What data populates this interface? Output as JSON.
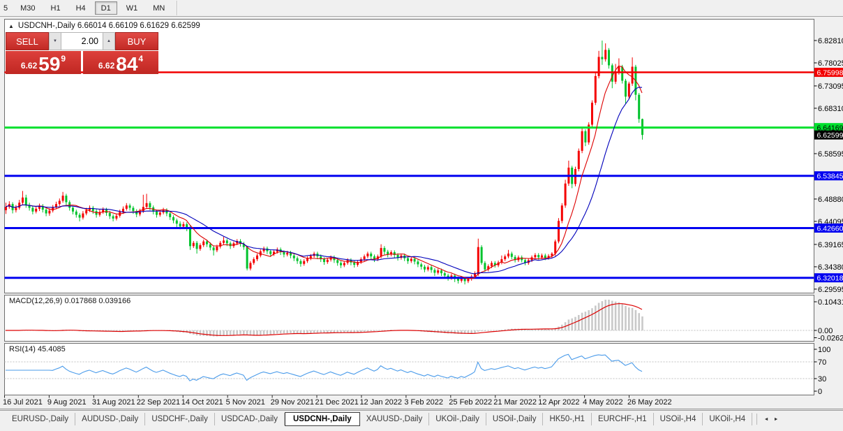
{
  "toolbar": {
    "timeframes": [
      "5",
      "M30",
      "H1",
      "H4",
      "D1",
      "W1",
      "MN"
    ],
    "active": "D1"
  },
  "chart": {
    "title": "USDCNH-,Daily 6.66014 6.66109 6.61629 6.62599"
  },
  "icons": {
    "collapse": "▲",
    "stepper_down": "▼",
    "stepper_up": "▲",
    "tab_scroll_left": "◄",
    "tab_scroll_right": "►"
  },
  "trade_panel": {
    "sell_label": "SELL",
    "buy_label": "BUY",
    "volume": "2.00",
    "sell_price_small": "6.62",
    "sell_price_big": "59",
    "sell_price_sup": "9",
    "buy_price_small": "6.62",
    "buy_price_big": "84",
    "buy_price_sup": "4"
  },
  "macd": {
    "label": "MACD(12,26,9) 0.017868 0.039166",
    "axis": [
      "0.104313",
      "0.00",
      "-0.026249"
    ]
  },
  "rsi": {
    "label": "RSI(14) 45.4085",
    "axis": [
      "100",
      "70",
      "30",
      "0"
    ]
  },
  "tabs": {
    "items": [
      "EURUSD-,Daily",
      "AUDUSD-,Daily",
      "USDCHF-,Daily",
      "USDCAD-,Daily",
      "USDCNH-,Daily",
      "XAUUSD-,Daily",
      "UKOil-,Daily",
      "USOil-,Daily",
      "HK50-,H1",
      "EURCHF-,H1",
      "USOil-,H4",
      "UKOil-,H4"
    ],
    "active": "USDCNH-,Daily"
  },
  "chart_data": {
    "type": "candlestick",
    "symbol": "USDCNH-",
    "period": "Daily",
    "price_ticks": [
      "6.82810",
      "6.78025",
      "6.73095",
      "6.68310",
      "6.58595",
      "6.48880",
      "6.44095",
      "6.39165",
      "6.34380",
      "6.29595"
    ],
    "current_price": {
      "value": "6.62599",
      "bg": "#000000",
      "text": "#ffffff"
    },
    "hlines": [
      {
        "price": "6.75998",
        "color": "#f20000",
        "text": "#ffffff",
        "width": 2.5
      },
      {
        "price": "6.64169",
        "color": "#00e02e",
        "text": "#000000",
        "width": 3
      },
      {
        "price": "6.53845",
        "color": "#0202f0",
        "text": "#ffffff",
        "width": 3
      },
      {
        "price": "6.42660",
        "color": "#0202f0",
        "text": "#ffffff",
        "width": 3
      },
      {
        "price": "6.32018",
        "color": "#0202f0",
        "text": "#ffffff",
        "width": 3
      }
    ],
    "date_ticks": [
      "16 Jul 2021",
      "9 Aug 2021",
      "31 Aug 2021",
      "22 Sep 2021",
      "14 Oct 2021",
      "5 Nov 2021",
      "29 Nov 2021",
      "21 Dec 2021",
      "12 Jan 2022",
      "3 Feb 2022",
      "25 Feb 2022",
      "21 Mar 2022",
      "12 Apr 2022",
      "4 May 2022",
      "26 May 2022"
    ],
    "colors": {
      "up": "#f40000",
      "down": "#00c22c",
      "ma_fast": "#dd0000",
      "ma_slow": "#0000bb",
      "macd_hist": "#c9c9c9",
      "macd_signal": "#dd0000",
      "rsi": "#4a9bea",
      "dash": "#c0c0c0"
    },
    "candles": [
      [
        6.465,
        6.481,
        6.457,
        6.472
      ],
      [
        6.472,
        6.484,
        6.468,
        6.478
      ],
      [
        6.478,
        6.482,
        6.458,
        6.465
      ],
      [
        6.465,
        6.476,
        6.46,
        6.47
      ],
      [
        6.47,
        6.487,
        6.466,
        6.481
      ],
      [
        6.481,
        6.506,
        6.477,
        6.492
      ],
      [
        6.492,
        6.498,
        6.47,
        6.475
      ],
      [
        6.475,
        6.481,
        6.464,
        6.47
      ],
      [
        6.47,
        6.474,
        6.456,
        6.462
      ],
      [
        6.462,
        6.473,
        6.458,
        6.468
      ],
      [
        6.468,
        6.479,
        6.463,
        6.474
      ],
      [
        6.474,
        6.478,
        6.46,
        6.466
      ],
      [
        6.466,
        6.47,
        6.452,
        6.458
      ],
      [
        6.458,
        6.469,
        6.453,
        6.464
      ],
      [
        6.464,
        6.476,
        6.46,
        6.471
      ],
      [
        6.471,
        6.483,
        6.467,
        6.478
      ],
      [
        6.478,
        6.49,
        6.474,
        6.485
      ],
      [
        6.485,
        6.504,
        6.481,
        6.496
      ],
      [
        6.496,
        6.5,
        6.476,
        6.482
      ],
      [
        6.482,
        6.486,
        6.464,
        6.47
      ],
      [
        6.47,
        6.474,
        6.456,
        6.462
      ],
      [
        6.462,
        6.466,
        6.449,
        6.455
      ],
      [
        6.455,
        6.459,
        6.441,
        6.449
      ],
      [
        6.449,
        6.463,
        6.445,
        6.458
      ],
      [
        6.458,
        6.47,
        6.454,
        6.465
      ],
      [
        6.465,
        6.475,
        6.461,
        6.47
      ],
      [
        6.47,
        6.474,
        6.457,
        6.463
      ],
      [
        6.463,
        6.467,
        6.449,
        6.455
      ],
      [
        6.455,
        6.466,
        6.451,
        6.461
      ],
      [
        6.461,
        6.471,
        6.457,
        6.466
      ],
      [
        6.466,
        6.47,
        6.453,
        6.459
      ],
      [
        6.459,
        6.463,
        6.446,
        6.452
      ],
      [
        6.452,
        6.456,
        6.441,
        6.447
      ],
      [
        6.447,
        6.458,
        6.443,
        6.453
      ],
      [
        6.453,
        6.466,
        6.449,
        6.461
      ],
      [
        6.461,
        6.473,
        6.457,
        6.468
      ],
      [
        6.468,
        6.48,
        6.464,
        6.475
      ],
      [
        6.475,
        6.479,
        6.464,
        6.47
      ],
      [
        6.47,
        6.474,
        6.457,
        6.463
      ],
      [
        6.463,
        6.467,
        6.45,
        6.456
      ],
      [
        6.456,
        6.468,
        6.452,
        6.463
      ],
      [
        6.463,
        6.498,
        6.459,
        6.472
      ],
      [
        6.472,
        6.5,
        6.468,
        6.48
      ],
      [
        6.48,
        6.484,
        6.465,
        6.471
      ],
      [
        6.471,
        6.475,
        6.456,
        6.462
      ],
      [
        6.462,
        6.466,
        6.449,
        6.455
      ],
      [
        6.455,
        6.465,
        6.451,
        6.46
      ],
      [
        6.46,
        6.47,
        6.456,
        6.465
      ],
      [
        6.465,
        6.469,
        6.452,
        6.458
      ],
      [
        6.458,
        6.462,
        6.444,
        6.45
      ],
      [
        6.45,
        6.454,
        6.437,
        6.443
      ],
      [
        6.443,
        6.447,
        6.428,
        6.436
      ],
      [
        6.436,
        6.441,
        6.424,
        6.43
      ],
      [
        6.43,
        6.44,
        6.426,
        6.435
      ],
      [
        6.435,
        6.439,
        6.42,
        6.428
      ],
      [
        6.428,
        6.432,
        6.38,
        6.388
      ],
      [
        6.388,
        6.399,
        6.384,
        6.395
      ],
      [
        6.395,
        6.399,
        6.372,
        6.382
      ],
      [
        6.382,
        6.394,
        6.378,
        6.39
      ],
      [
        6.39,
        6.402,
        6.386,
        6.398
      ],
      [
        6.398,
        6.402,
        6.386,
        6.392
      ],
      [
        6.392,
        6.396,
        6.379,
        6.385
      ],
      [
        6.385,
        6.389,
        6.368,
        6.379
      ],
      [
        6.379,
        6.391,
        6.375,
        6.387
      ],
      [
        6.387,
        6.399,
        6.383,
        6.395
      ],
      [
        6.395,
        6.408,
        6.391,
        6.4
      ],
      [
        6.4,
        6.404,
        6.388,
        6.394
      ],
      [
        6.394,
        6.398,
        6.382,
        6.388
      ],
      [
        6.388,
        6.398,
        6.384,
        6.394
      ],
      [
        6.394,
        6.403,
        6.39,
        6.399
      ],
      [
        6.399,
        6.403,
        6.387,
        6.393
      ],
      [
        6.393,
        6.397,
        6.38,
        6.386
      ],
      [
        6.386,
        6.388,
        6.336,
        6.34
      ],
      [
        6.34,
        6.356,
        6.336,
        6.352
      ],
      [
        6.352,
        6.364,
        6.348,
        6.36
      ],
      [
        6.36,
        6.372,
        6.356,
        6.368
      ],
      [
        6.368,
        6.381,
        6.364,
        6.377
      ],
      [
        6.377,
        6.387,
        6.373,
        6.383
      ],
      [
        6.383,
        6.387,
        6.371,
        6.377
      ],
      [
        6.377,
        6.381,
        6.365,
        6.371
      ],
      [
        6.371,
        6.38,
        6.367,
        6.376
      ],
      [
        6.376,
        6.385,
        6.372,
        6.381
      ],
      [
        6.381,
        6.385,
        6.369,
        6.375
      ],
      [
        6.375,
        6.379,
        6.364,
        6.37
      ],
      [
        6.37,
        6.378,
        6.366,
        6.374
      ],
      [
        6.374,
        6.378,
        6.362,
        6.368
      ],
      [
        6.368,
        6.372,
        6.356,
        6.362
      ],
      [
        6.362,
        6.366,
        6.35,
        6.356
      ],
      [
        6.356,
        6.36,
        6.344,
        6.35
      ],
      [
        6.35,
        6.36,
        6.346,
        6.356
      ],
      [
        6.356,
        6.366,
        6.352,
        6.362
      ],
      [
        6.362,
        6.371,
        6.358,
        6.367
      ],
      [
        6.367,
        6.376,
        6.363,
        6.372
      ],
      [
        6.372,
        6.376,
        6.36,
        6.366
      ],
      [
        6.366,
        6.37,
        6.354,
        6.36
      ],
      [
        6.36,
        6.364,
        6.348,
        6.354
      ],
      [
        6.354,
        6.363,
        6.35,
        6.359
      ],
      [
        6.359,
        6.368,
        6.355,
        6.364
      ],
      [
        6.364,
        6.368,
        6.352,
        6.358
      ],
      [
        6.358,
        6.362,
        6.346,
        6.352
      ],
      [
        6.352,
        6.356,
        6.341,
        6.347
      ],
      [
        6.347,
        6.356,
        6.343,
        6.352
      ],
      [
        6.352,
        6.362,
        6.348,
        6.358
      ],
      [
        6.358,
        6.362,
        6.347,
        6.353
      ],
      [
        6.353,
        6.357,
        6.342,
        6.348
      ],
      [
        6.348,
        6.358,
        6.344,
        6.354
      ],
      [
        6.354,
        6.364,
        6.35,
        6.36
      ],
      [
        6.36,
        6.37,
        6.356,
        6.366
      ],
      [
        6.366,
        6.376,
        6.362,
        6.372
      ],
      [
        6.372,
        6.376,
        6.36,
        6.366
      ],
      [
        6.366,
        6.37,
        6.354,
        6.36
      ],
      [
        6.36,
        6.37,
        6.356,
        6.366
      ],
      [
        6.366,
        6.392,
        6.362,
        6.384
      ],
      [
        6.384,
        6.388,
        6.37,
        6.376
      ],
      [
        6.376,
        6.38,
        6.364,
        6.37
      ],
      [
        6.37,
        6.379,
        6.366,
        6.375
      ],
      [
        6.375,
        6.379,
        6.363,
        6.369
      ],
      [
        6.369,
        6.373,
        6.357,
        6.363
      ],
      [
        6.363,
        6.372,
        6.359,
        6.368
      ],
      [
        6.368,
        6.372,
        6.356,
        6.362
      ],
      [
        6.362,
        6.366,
        6.35,
        6.356
      ],
      [
        6.356,
        6.365,
        6.352,
        6.361
      ],
      [
        6.361,
        6.365,
        6.349,
        6.355
      ],
      [
        6.355,
        6.359,
        6.343,
        6.349
      ],
      [
        6.349,
        6.353,
        6.338,
        6.344
      ],
      [
        6.344,
        6.348,
        6.332,
        6.338
      ],
      [
        6.338,
        6.347,
        6.334,
        6.343
      ],
      [
        6.343,
        6.347,
        6.331,
        6.337
      ],
      [
        6.337,
        6.341,
        6.324,
        6.331
      ],
      [
        6.331,
        6.34,
        6.327,
        6.336
      ],
      [
        6.336,
        6.34,
        6.324,
        6.33
      ],
      [
        6.33,
        6.334,
        6.319,
        6.325
      ],
      [
        6.325,
        6.329,
        6.314,
        6.32
      ],
      [
        6.32,
        6.329,
        6.316,
        6.325
      ],
      [
        6.325,
        6.329,
        6.311,
        6.319
      ],
      [
        6.319,
        6.323,
        6.308,
        6.314
      ],
      [
        6.314,
        6.323,
        6.31,
        6.319
      ],
      [
        6.319,
        6.322,
        6.306,
        6.313
      ],
      [
        6.313,
        6.322,
        6.309,
        6.318
      ],
      [
        6.318,
        6.327,
        6.314,
        6.323
      ],
      [
        6.323,
        6.334,
        6.319,
        6.33
      ],
      [
        6.328,
        6.404,
        6.324,
        6.386
      ],
      [
        6.386,
        6.39,
        6.348,
        6.352
      ],
      [
        6.352,
        6.356,
        6.333,
        6.338
      ],
      [
        6.338,
        6.349,
        6.334,
        6.345
      ],
      [
        6.345,
        6.356,
        6.341,
        6.352
      ],
      [
        6.352,
        6.356,
        6.342,
        6.347
      ],
      [
        6.347,
        6.357,
        6.343,
        6.353
      ],
      [
        6.353,
        6.368,
        6.349,
        6.36
      ],
      [
        6.36,
        6.37,
        6.356,
        6.366
      ],
      [
        6.366,
        6.38,
        6.362,
        6.372
      ],
      [
        6.372,
        6.376,
        6.36,
        6.365
      ],
      [
        6.365,
        6.369,
        6.353,
        6.358
      ],
      [
        6.358,
        6.368,
        6.354,
        6.364
      ],
      [
        6.364,
        6.368,
        6.353,
        6.358
      ],
      [
        6.358,
        6.362,
        6.347,
        6.352
      ],
      [
        6.352,
        6.362,
        6.348,
        6.358
      ],
      [
        6.358,
        6.368,
        6.354,
        6.364
      ],
      [
        6.364,
        6.373,
        6.36,
        6.369
      ],
      [
        6.369,
        6.373,
        6.359,
        6.364
      ],
      [
        6.364,
        6.372,
        6.36,
        6.368
      ],
      [
        6.368,
        6.372,
        6.358,
        6.363
      ],
      [
        6.363,
        6.371,
        6.359,
        6.367
      ],
      [
        6.367,
        6.375,
        6.362,
        6.372
      ],
      [
        6.372,
        6.402,
        6.367,
        6.398
      ],
      [
        6.398,
        6.448,
        6.394,
        6.442
      ],
      [
        6.442,
        6.48,
        6.437,
        6.475
      ],
      [
        6.475,
        6.53,
        6.47,
        6.522
      ],
      [
        6.522,
        6.571,
        6.517,
        6.556
      ],
      [
        6.556,
        6.56,
        6.512,
        6.521
      ],
      [
        6.521,
        6.558,
        6.516,
        6.553
      ],
      [
        6.553,
        6.597,
        6.548,
        6.592
      ],
      [
        6.592,
        6.64,
        6.587,
        6.634
      ],
      [
        6.634,
        6.638,
        6.602,
        6.61
      ],
      [
        6.61,
        6.653,
        6.605,
        6.648
      ],
      [
        6.648,
        6.7,
        6.643,
        6.695
      ],
      [
        6.695,
        6.76,
        6.69,
        6.752
      ],
      [
        6.752,
        6.806,
        6.747,
        6.793
      ],
      [
        6.793,
        6.828,
        6.776,
        6.788
      ],
      [
        6.788,
        6.822,
        6.783,
        6.808
      ],
      [
        6.808,
        6.812,
        6.768,
        6.775
      ],
      [
        6.775,
        6.779,
        6.726,
        6.74
      ],
      [
        6.74,
        6.778,
        6.735,
        6.76
      ],
      [
        6.76,
        6.79,
        6.755,
        6.772
      ],
      [
        6.772,
        6.776,
        6.736,
        6.742
      ],
      [
        6.742,
        6.746,
        6.692,
        6.708
      ],
      [
        6.708,
        6.74,
        6.703,
        6.736
      ],
      [
        6.736,
        6.792,
        6.731,
        6.772
      ],
      [
        6.772,
        6.776,
        6.7,
        6.712
      ],
      [
        6.712,
        6.716,
        6.652,
        6.66
      ],
      [
        6.66,
        6.661,
        6.616,
        6.626
      ]
    ]
  }
}
